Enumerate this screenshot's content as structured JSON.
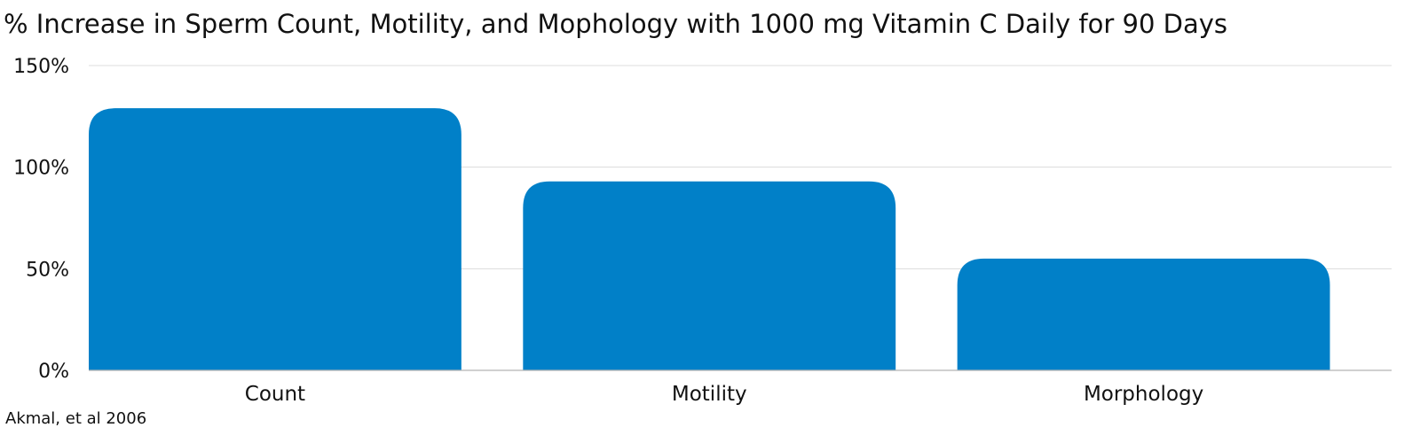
{
  "chart_data": {
    "type": "bar",
    "title": "% Increase in Sperm Count, Motility, and Mophology with 1000 mg Vitamin C Daily for 90 Days",
    "xlabel": "",
    "ylabel": "",
    "categories": [
      "Count",
      "Motility",
      "Morphology"
    ],
    "values": [
      129,
      93,
      55
    ],
    "ylim": [
      0,
      150
    ],
    "yticks": [
      0,
      50,
      100,
      150
    ],
    "ytick_labels": [
      "0%",
      "50%",
      "100%",
      "150%"
    ],
    "grid": true,
    "legend": "none",
    "bar_color": "#0180c8",
    "source": "Akmal, et al 2006"
  }
}
